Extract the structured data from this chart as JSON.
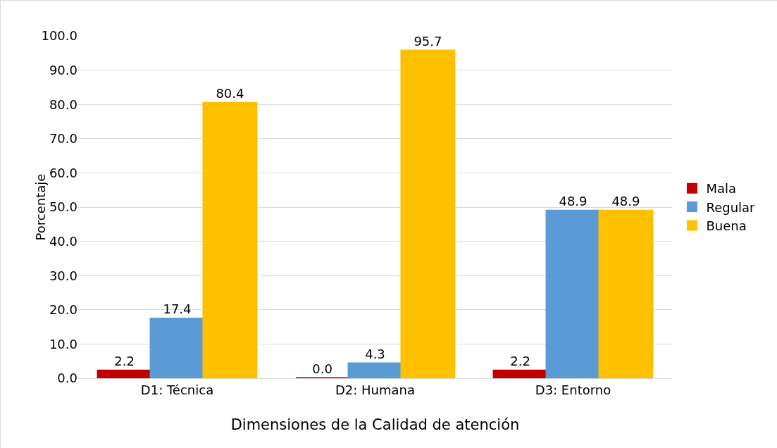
{
  "chart_data": {
    "type": "bar",
    "xlabel": "Dimensiones de la Calidad de atención",
    "ylabel": "Porcentaje",
    "categories": [
      "D1: Técnica",
      "D2: Humana",
      "D3: Entorno"
    ],
    "series": [
      {
        "name": "Mala",
        "color": "#c00000",
        "values": [
          2.2,
          0.0,
          2.2
        ],
        "value_labels": [
          "2.2",
          "0.0",
          "2.2"
        ]
      },
      {
        "name": "Regular",
        "color": "#5b9bd5",
        "values": [
          17.4,
          4.3,
          48.9
        ],
        "value_labels": [
          "17.4",
          "4.3",
          "48.9"
        ]
      },
      {
        "name": "Buena",
        "color": "#ffc000",
        "values": [
          80.4,
          95.7,
          48.9
        ],
        "value_labels": [
          "80.4",
          "95.7",
          "48.9"
        ]
      }
    ],
    "ylim": [
      0,
      100
    ],
    "yticks": [
      {
        "value": 0,
        "label": "0.0"
      },
      {
        "value": 10,
        "label": "10.0"
      },
      {
        "value": 20,
        "label": "20.0"
      },
      {
        "value": 30,
        "label": "30.0"
      },
      {
        "value": 40,
        "label": "40.0"
      },
      {
        "value": 50,
        "label": "50.0"
      },
      {
        "value": 60,
        "label": "60.0"
      },
      {
        "value": 70,
        "label": "70.0"
      },
      {
        "value": 80,
        "label": "80.0"
      },
      {
        "value": 90,
        "label": "90.0"
      },
      {
        "value": 100,
        "label": "100.0"
      }
    ],
    "grid": "y",
    "legend": "right"
  }
}
